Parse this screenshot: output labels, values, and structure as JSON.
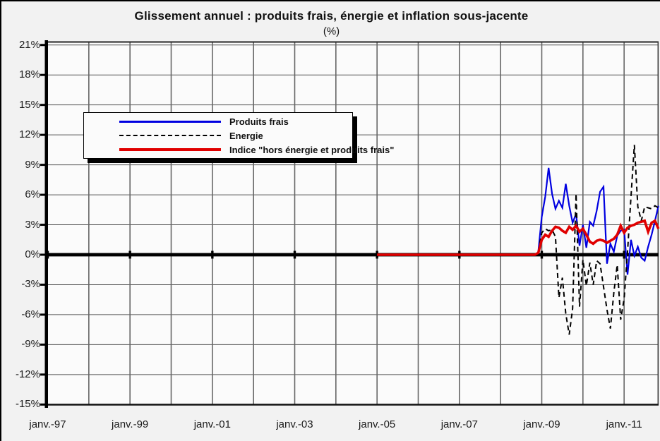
{
  "chart_data": {
    "type": "line",
    "title": "Glissement annuel : produits frais, énergie et inflation sous-jacente",
    "subtitle": "(%)",
    "grid": true,
    "legend_position": "upper-left-inside",
    "y_axis": {
      "min": -15,
      "max": 21,
      "step": 3,
      "tick_labels": [
        "21%",
        "18%",
        "15%",
        "12%",
        "9%",
        "6%",
        "3%",
        "0%",
        "-3%",
        "-6%",
        "-9%",
        "-12%",
        "-15%"
      ],
      "tick_values": [
        21,
        18,
        15,
        12,
        9,
        6,
        3,
        0,
        -3,
        -6,
        -9,
        -12,
        -15
      ]
    },
    "x_axis": {
      "start_month": "1997-01",
      "end_month": "2011-11",
      "tick_labels": [
        "janv.-97",
        "janv.-99",
        "janv.-01",
        "janv.-03",
        "janv.-05",
        "janv.-07",
        "janv.-09",
        "janv.-11"
      ],
      "tick_years": [
        1997,
        1999,
        2001,
        2003,
        2005,
        2007,
        2009,
        2011
      ],
      "gridline_every_years": 1
    },
    "zero_axis_line": true,
    "colors": {
      "produits_frais": "#0000e0",
      "energie": "#000000",
      "indice": "#e00000"
    },
    "series": [
      {
        "name": "Produits frais",
        "color": "#0000e0",
        "line_style": "solid",
        "start_month": "2008-12",
        "monthly_values": [
          0.3,
          3.8,
          5.8,
          8.7,
          6.1,
          4.6,
          5.4,
          4.7,
          7.1,
          4.9,
          3.2,
          4.1,
          0.9,
          3.0,
          0.7,
          3.3,
          2.9,
          4.4,
          6.3,
          6.8,
          -0.9,
          1.1,
          0.3,
          1.9,
          2.4,
          2.5,
          -2.0,
          1.5,
          -0.1,
          0.8,
          -0.3,
          -0.6,
          0.8,
          2.0,
          3.4,
          4.9
        ]
      },
      {
        "name": "Energie",
        "color": "#000000",
        "line_style": "dashed",
        "start_month": "2008-12",
        "monthly_values": [
          0.3,
          2.2,
          2.6,
          2.4,
          2.5,
          1.8,
          -4.3,
          -2.3,
          -5.9,
          -8.0,
          -5.4,
          6.1,
          -5.2,
          -0.5,
          -3.1,
          -0.8,
          -3.0,
          -0.6,
          -0.9,
          -3.2,
          -5.5,
          -7.4,
          -3.8,
          -1.0,
          -6.5,
          -4.4,
          0.3,
          5.8,
          11.0,
          4.8,
          3.4,
          4.8,
          4.7,
          4.6,
          4.9,
          4.7
        ]
      },
      {
        "name": "Indice \"hors énergie et produits frais\"",
        "color": "#e00000",
        "line_style": "solid",
        "start_month": "2005-01",
        "monthly_values": [
          0,
          0,
          0,
          0,
          0,
          0,
          0,
          0,
          0,
          0,
          0,
          0,
          0,
          0,
          0,
          0,
          0,
          0,
          0,
          0,
          0,
          0,
          0,
          0,
          0,
          0,
          0,
          0,
          0,
          0,
          0,
          0,
          0,
          0,
          0,
          0,
          0,
          0,
          0,
          0,
          0,
          0,
          0,
          0,
          0,
          0,
          0,
          0.2,
          1.5,
          2.0,
          1.8,
          2.4,
          2.8,
          2.7,
          2.4,
          2.2,
          2.8,
          2.5,
          2.9,
          2.3,
          2.6,
          2.0,
          1.3,
          1.1,
          1.4,
          1.5,
          1.4,
          1.2,
          1.4,
          1.6,
          2.0,
          2.9,
          2.2,
          2.7,
          2.9,
          3.0,
          3.2,
          3.3,
          3.4,
          2.3,
          3.2,
          3.4,
          2.6
        ]
      }
    ]
  }
}
